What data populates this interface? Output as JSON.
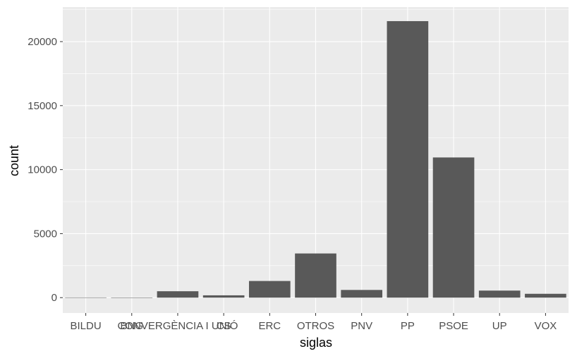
{
  "chart_data": {
    "type": "bar",
    "categories": [
      "BILDU",
      "BNG",
      "CONVERGÈNCIA I UNIÓ",
      "CS",
      "ERC",
      "OTROS",
      "PNV",
      "PP",
      "PSOE",
      "UP",
      "VOX"
    ],
    "values": [
      15,
      10,
      500,
      180,
      1300,
      3450,
      600,
      21600,
      10950,
      550,
      300
    ],
    "xlabel": "siglas",
    "ylabel": "count",
    "ylim": [
      -1200,
      22700
    ],
    "yticks": [
      0,
      5000,
      10000,
      15000,
      20000
    ],
    "grid": true,
    "colors": {
      "panel": "#ebebeb",
      "grid_major": "#ffffff",
      "bar": "#595959"
    }
  }
}
